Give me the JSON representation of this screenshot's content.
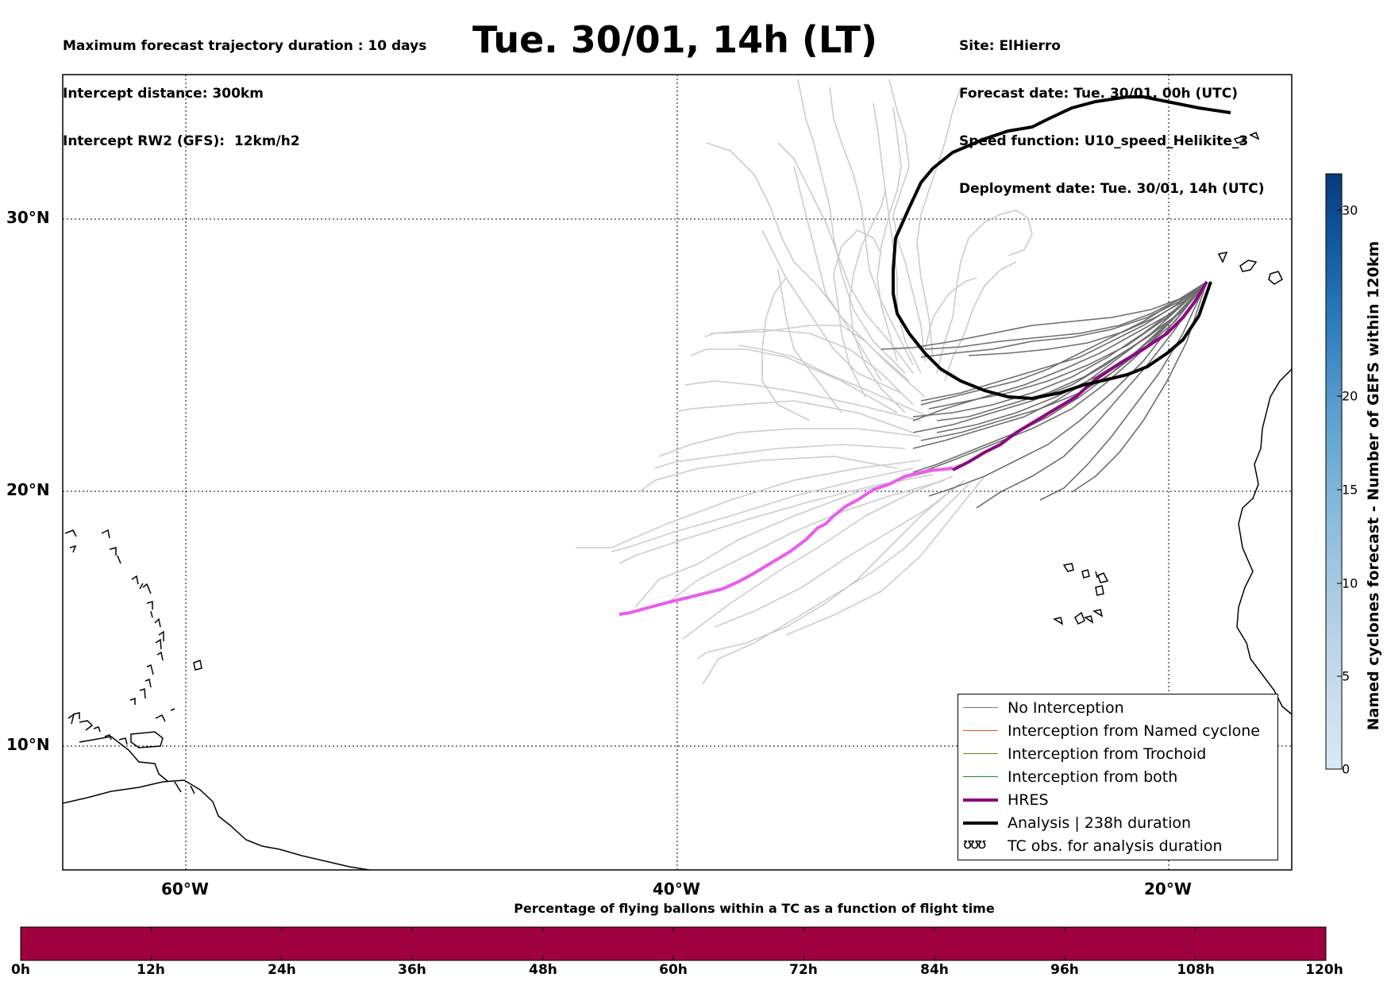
{
  "header": {
    "left_lines": [
      "Maximum forecast trajectory duration : 10 days",
      "Intercept distance: 300km",
      "Intercept RW2 (GFS):  12km/h2"
    ],
    "title": "Tue. 30/01, 14h (LT)",
    "right_lines": [
      "Site: ElHierro",
      "Forecast date: Tue. 30/01, 00h (UTC)",
      "Speed function: U10_speed_Helikite_3",
      "Deployment date: Tue. 30/01, 14h (UTC)"
    ]
  },
  "map": {
    "lat_labels": [
      "30°N",
      "20°N",
      "10°N"
    ],
    "lon_labels": [
      "60°W",
      "40°W",
      "20°W"
    ],
    "colors": {
      "no_interception": "#6e6e6e",
      "ensemble_light": "#cccccc",
      "hres": "#8b0a7f",
      "hres_bright": "#ec5cec",
      "analysis": "#000000"
    }
  },
  "legend": {
    "items": [
      {
        "label": "No Interception",
        "color": "#7a7a7a",
        "width": 1.5
      },
      {
        "label": "Interception from Named cyclone",
        "color": "#e8501c",
        "width": 1.5
      },
      {
        "label": "Interception from Trochoid",
        "color": "#7a7a1a",
        "width": 1.5
      },
      {
        "label": "Interception from both",
        "color": "#1f8a2a",
        "width": 1.5
      },
      {
        "label": "HRES",
        "color": "#8b0a7f",
        "width": 4
      },
      {
        "label": "Analysis | 238h duration",
        "color": "#000000",
        "width": 4
      }
    ],
    "tc_label": "TC obs. for analysis duration",
    "tc_symbol": "ʊʊʊ"
  },
  "bottom_colorbar": {
    "title": "Percentage of flying ballons within a TC as a function of flight time",
    "color": "#9e0040",
    "ticks": [
      "0h",
      "12h",
      "24h",
      "36h",
      "48h",
      "60h",
      "72h",
      "84h",
      "96h",
      "108h",
      "120h"
    ]
  },
  "right_colorbar": {
    "title": "Named cyclones forecast - Number of GEFS within 120km",
    "ticks": [
      "0",
      "5",
      "10",
      "15",
      "20",
      "30"
    ],
    "colors": [
      "#d8e6f5",
      "#c4d9ee",
      "#a9cce4",
      "#86bcdc",
      "#5fa2d0",
      "#3c86c2",
      "#2166ac",
      "#0d4f96",
      "#083a7a"
    ]
  }
}
